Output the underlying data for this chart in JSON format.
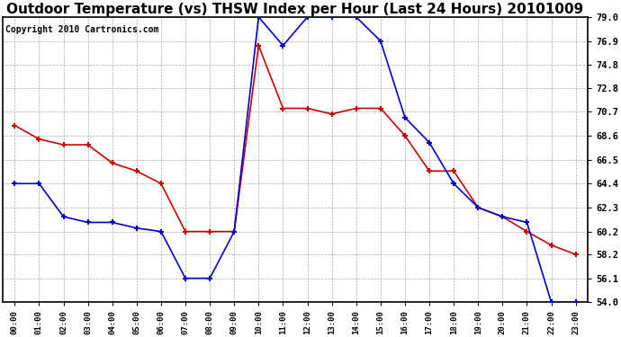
{
  "title": "Outdoor Temperature (vs) THSW Index per Hour (Last 24 Hours) 20101009",
  "copyright": "Copyright 2010 Cartronics.com",
  "hours": [
    0,
    1,
    2,
    3,
    4,
    5,
    6,
    7,
    8,
    9,
    10,
    11,
    12,
    13,
    14,
    15,
    16,
    17,
    18,
    19,
    20,
    21,
    22,
    23
  ],
  "temp": [
    64.4,
    64.4,
    61.5,
    61.0,
    61.0,
    60.5,
    60.2,
    56.1,
    56.1,
    60.2,
    79.0,
    76.5,
    79.0,
    79.0,
    79.0,
    76.9,
    70.2,
    68.0,
    64.4,
    62.3,
    61.5,
    61.0,
    54.0,
    54.0
  ],
  "thsw": [
    69.5,
    68.3,
    67.8,
    67.8,
    66.2,
    65.5,
    64.4,
    60.2,
    60.2,
    60.2,
    76.5,
    71.0,
    71.0,
    70.5,
    71.0,
    71.0,
    68.6,
    65.5,
    65.5,
    62.3,
    61.5,
    60.2,
    59.0,
    58.2
  ],
  "temp_color": "#0000cc",
  "thsw_color": "#cc0000",
  "ylim_min": 54.0,
  "ylim_max": 79.0,
  "yticks": [
    54.0,
    56.1,
    58.2,
    60.2,
    62.3,
    64.4,
    66.5,
    68.6,
    70.7,
    72.8,
    74.8,
    76.9,
    79.0
  ],
  "background_color": "#ffffff",
  "grid_color": "#aaaaaa",
  "title_fontsize": 11,
  "copyright_fontsize": 7,
  "fig_width": 6.9,
  "fig_height": 3.75,
  "dpi": 100
}
